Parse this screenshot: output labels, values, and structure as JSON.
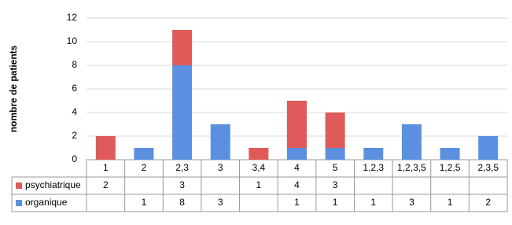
{
  "chart_data": {
    "type": "stacked_bar",
    "y_label": "nombre de patients",
    "categories": [
      "1",
      "2",
      "2,3",
      "3",
      "3,4",
      "4",
      "5",
      "1,2,3",
      "1,2,3,5",
      "1,2,5",
      "2,3,5"
    ],
    "series": [
      {
        "name": "organique",
        "color": "#5b8fe0",
        "values": [
          null,
          1,
          8,
          3,
          null,
          1,
          1,
          1,
          3,
          1,
          2
        ]
      },
      {
        "name": "psychiatrique",
        "color": "#e05a5a",
        "values": [
          2,
          null,
          3,
          null,
          1,
          4,
          3,
          null,
          null,
          null,
          null
        ]
      }
    ],
    "ylim": [
      0,
      12
    ],
    "yticks": [
      0,
      2,
      4,
      6,
      8,
      10,
      12
    ],
    "grid": true
  }
}
